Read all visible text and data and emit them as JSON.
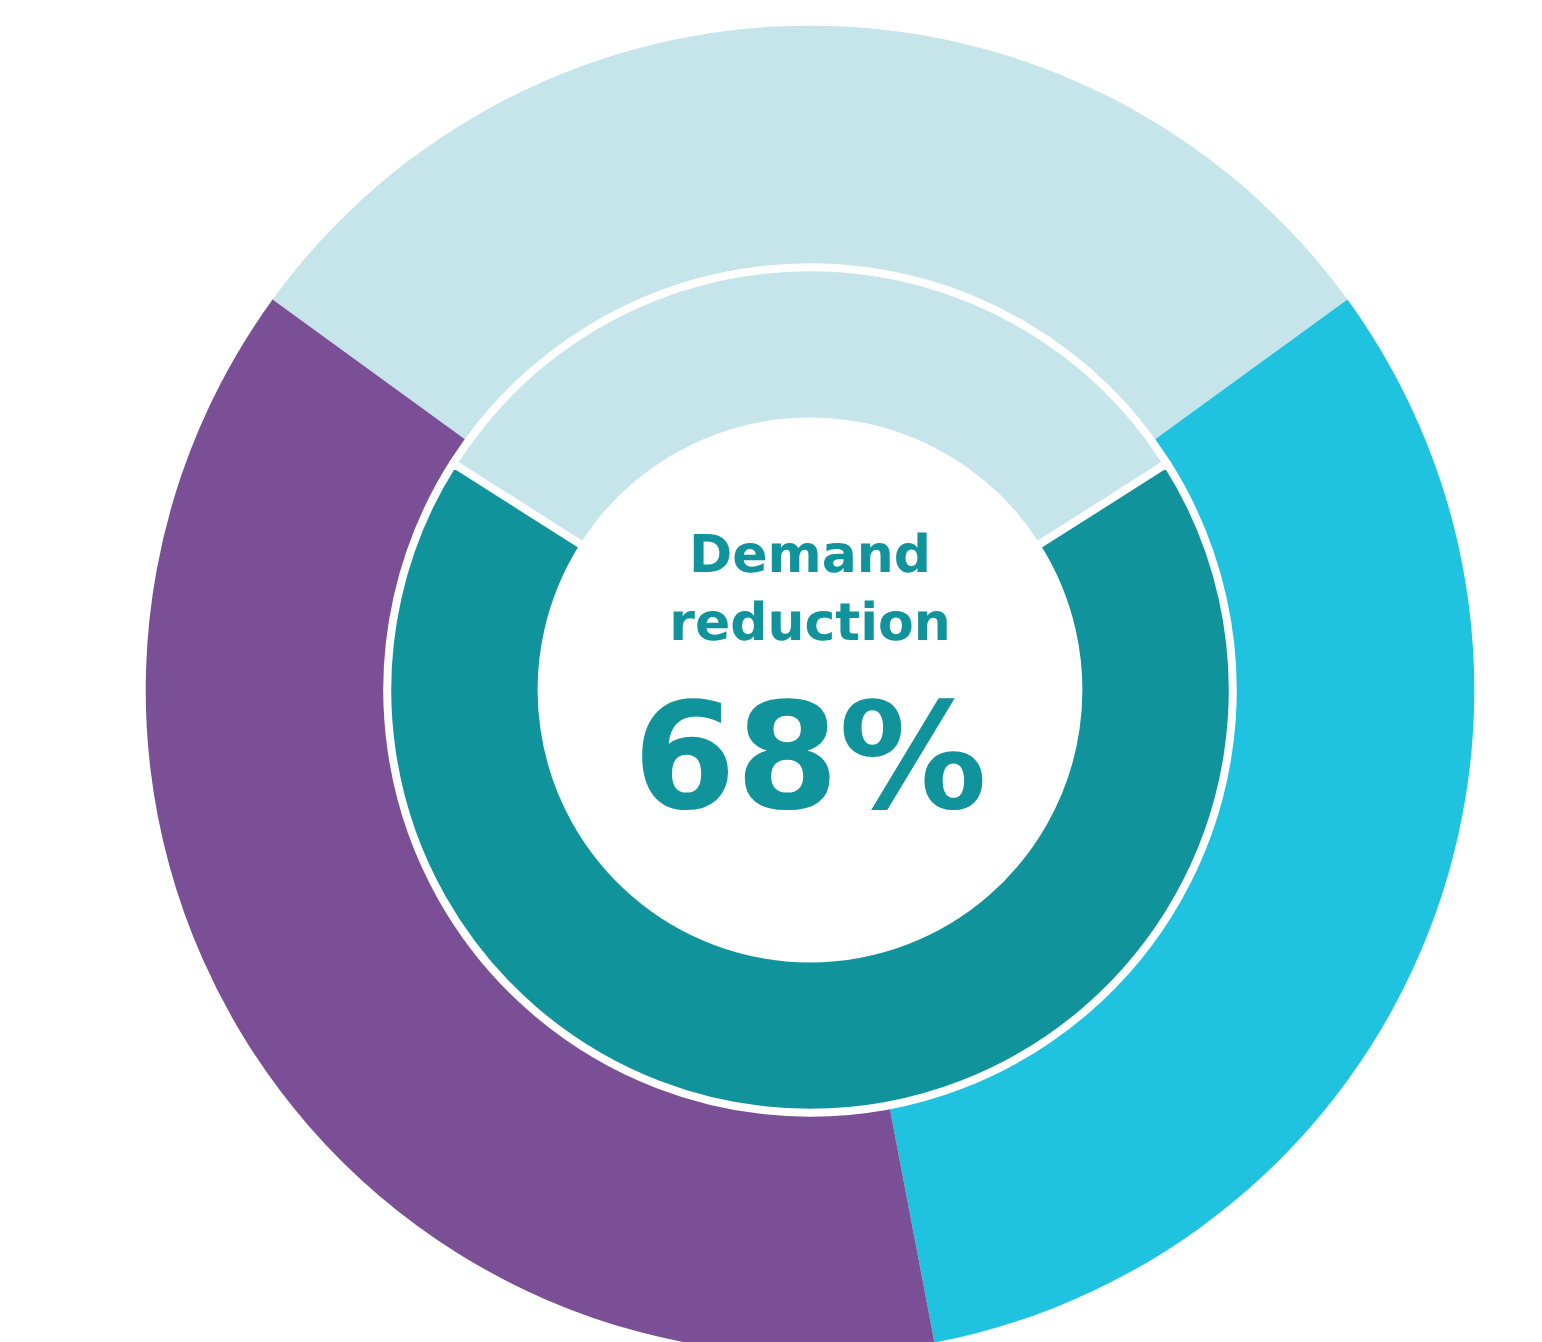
{
  "chart_data": [
    {
      "type": "donut",
      "categories": [
        null,
        null,
        null
      ],
      "values": [
        30,
        32,
        38
      ],
      "colors": [
        "#c6e5eb",
        "#1fc3df",
        "#7a4f95"
      ]
    },
    {
      "type": "donut",
      "categories": [
        null,
        "Demand reduction"
      ],
      "values": [
        32,
        68
      ],
      "colors": [
        "#c6e5eb",
        "#11939b"
      ],
      "value_labels": [
        null,
        "68%"
      ]
    }
  ]
}
